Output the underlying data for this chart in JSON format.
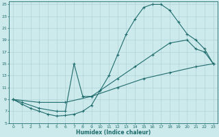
{
  "xlabel": "Humidex (Indice chaleur)",
  "bg_color": "#cce9ec",
  "grid_color": "#b0d4d8",
  "line_color": "#1e6b6b",
  "xlim": [
    -0.5,
    23.5
  ],
  "ylim": [
    5,
    25.5
  ],
  "xticks": [
    0,
    1,
    2,
    3,
    4,
    5,
    6,
    7,
    8,
    9,
    10,
    11,
    12,
    13,
    14,
    15,
    16,
    17,
    18,
    19,
    20,
    21,
    22,
    23
  ],
  "yticks": [
    5,
    7,
    9,
    11,
    13,
    15,
    17,
    19,
    21,
    23,
    25
  ],
  "curve1_x": [
    0,
    1,
    2,
    3,
    4,
    5,
    6,
    7,
    8,
    9,
    10,
    11,
    12,
    13,
    14,
    15,
    16,
    17,
    18,
    19,
    20,
    21,
    22,
    23
  ],
  "curve1_y": [
    9.0,
    8.2,
    7.5,
    7.0,
    6.5,
    6.2,
    6.3,
    6.5,
    7.0,
    8.0,
    10.5,
    13.0,
    16.5,
    20.0,
    22.5,
    24.5,
    25.0,
    25.0,
    24.0,
    22.0,
    20.0,
    19.0,
    17.5,
    15.0
  ],
  "curve2_x": [
    0,
    1,
    3,
    5,
    6,
    7,
    8,
    9,
    10,
    12,
    14,
    16,
    18,
    20,
    21,
    22,
    23
  ],
  "curve2_y": [
    9.0,
    8.5,
    7.5,
    7.0,
    7.0,
    15.0,
    9.5,
    9.5,
    10.5,
    12.5,
    14.5,
    16.5,
    18.5,
    19.0,
    17.5,
    17.0,
    15.0
  ],
  "curve3_x": [
    0,
    3,
    6,
    9,
    12,
    15,
    18,
    21,
    23
  ],
  "curve3_y": [
    9.0,
    8.5,
    8.5,
    9.5,
    11.0,
    12.5,
    13.5,
    14.5,
    15.0
  ]
}
